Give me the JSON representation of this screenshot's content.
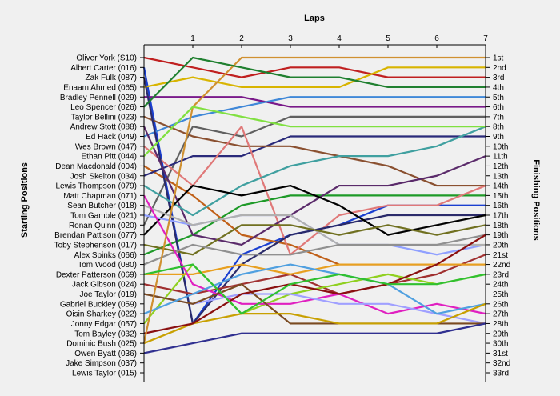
{
  "chart_data": {
    "type": "line",
    "title": "",
    "xlabel": "Laps",
    "ylabel": "Starting Positions",
    "y2label": "Finishing Positions",
    "x": [
      0,
      1,
      2,
      3,
      4,
      5,
      6,
      7
    ],
    "x_tick_labels": [
      "1",
      "2",
      "3",
      "4",
      "5",
      "6",
      "7"
    ],
    "ylim": [
      1,
      33
    ],
    "y_inverted": true,
    "grid": false,
    "start_labels": [
      "Oliver York (S10)",
      "Albert Carter (016)",
      "Zak Fulk (087)",
      "Enaam Ahmed (065)",
      "Bradley Pennell (029)",
      "Leo Spencer (026)",
      "Taylor Bellini (023)",
      "Andrew Stott (088)",
      "Ed Hack (049)",
      "Wes Brown (047)",
      "Ethan Pitt (044)",
      "Dean Macdonald (004)",
      "Josh Skelton (034)",
      "Lewis Thompson (079)",
      "Matt Chapman (071)",
      "Sean Butcher (018)",
      "Tom Gamble (021)",
      "Ronan Quinn (020)",
      "Brendan Pattison (077)",
      "Toby Stephenson (017)",
      "Alex Spinks (066)",
      "Tom Wood (080)",
      "Dexter Patterson (069)",
      "Jack Gibson (024)",
      "Joe Taylor (019)",
      "Gabriel Buckley (059)",
      "Oisin Sharkey (022)",
      "Jonny Edgar (057)",
      "Tom Bayley (032)",
      "Dominic Bush (025)",
      "Owen Byatt (036)",
      "Jake Simpson (037)",
      "Lewis Taylor (015)"
    ],
    "finish_labels": [
      "1st",
      "2nd",
      "3rd",
      "4th",
      "5th",
      "6th",
      "7th",
      "8th",
      "9th",
      "10th",
      "11th",
      "12th",
      "13th",
      "14th",
      "15th",
      "16th",
      "17th",
      "18th",
      "19th",
      "20th",
      "21st",
      "22nd",
      "23rd",
      "24th",
      "25th",
      "26th",
      "27th",
      "28th",
      "29th",
      "30th",
      "31st",
      "32nd",
      "33rd"
    ],
    "series": [
      {
        "color": "#c02020",
        "values": [
          1,
          2,
          3,
          2,
          2,
          3,
          3,
          3
        ]
      },
      {
        "color": "#1a3fd0",
        "values": [
          2,
          28,
          21,
          19,
          18,
          16,
          16,
          16
        ]
      },
      {
        "color": "#d8b400",
        "values": [
          4,
          3,
          4,
          4,
          4,
          2,
          2,
          2
        ]
      },
      {
        "color": "#1e9a28",
        "values": [
          21,
          19,
          16,
          15,
          15,
          15,
          15,
          15
        ]
      },
      {
        "color": "#7a1a8a",
        "values": [
          5,
          5,
          5,
          6,
          6,
          6,
          6,
          6
        ]
      },
      {
        "color": "#4088d8",
        "values": [
          9,
          7,
          6,
          5,
          5,
          5,
          5,
          5
        ]
      },
      {
        "color": "#c06018",
        "values": [
          12,
          15,
          19,
          20,
          22,
          22,
          22,
          22
        ]
      },
      {
        "color": "#606060",
        "values": [
          18,
          8,
          9,
          7,
          7,
          7,
          7,
          7
        ]
      },
      {
        "color": "#2a2a7a",
        "values": [
          13,
          11,
          11,
          9,
          9,
          9,
          9,
          9
        ]
      },
      {
        "color": "#8a5030",
        "values": [
          7,
          9,
          10,
          10,
          11,
          12,
          14,
          14
        ]
      },
      {
        "color": "#e07878",
        "values": [
          10,
          14,
          8,
          21,
          17,
          16,
          16,
          14
        ]
      },
      {
        "color": "#2a2a6a",
        "values": [
          3,
          28,
          22,
          19,
          18,
          17,
          17,
          17
        ]
      },
      {
        "color": "#5a2a6a",
        "values": [
          8,
          19,
          20,
          17,
          14,
          14,
          13,
          11
        ]
      },
      {
        "color": "#40a0a0",
        "values": [
          14,
          17,
          14,
          12,
          11,
          11,
          10,
          8
        ]
      },
      {
        "color": "#000000",
        "values": [
          19,
          14,
          15,
          14,
          16,
          19,
          18,
          17
        ]
      },
      {
        "color": "#90a0ff",
        "values": [
          17,
          18,
          17,
          17,
          20,
          20,
          21,
          20
        ]
      },
      {
        "color": "#b0b0b0",
        "values": [
          16,
          18,
          17,
          17,
          20,
          20,
          20,
          20
        ]
      },
      {
        "color": "#707020",
        "values": [
          20,
          21,
          18,
          18,
          19,
          18,
          19,
          18
        ]
      },
      {
        "color": "#a03030",
        "values": [
          24,
          25,
          24,
          23,
          25,
          24,
          23,
          21
        ]
      },
      {
        "color": "#909090",
        "values": [
          22,
          20,
          21,
          21,
          20,
          20,
          20,
          19
        ]
      },
      {
        "color": "#90d020",
        "values": [
          28,
          22,
          27,
          25,
          24,
          23,
          24,
          23
        ]
      },
      {
        "color": "#e8a020",
        "values": [
          23,
          23,
          22,
          23,
          22,
          22,
          22,
          22
        ]
      },
      {
        "color": "#e020c0",
        "values": [
          15,
          24,
          26,
          26,
          25,
          27,
          26,
          27
        ]
      },
      {
        "color": "#a0a0ff",
        "values": [
          25,
          26,
          25,
          25,
          26,
          26,
          27,
          28
        ]
      },
      {
        "color": "#7a4a20",
        "values": [
          25,
          26,
          24,
          28,
          28,
          28,
          28,
          28
        ]
      },
      {
        "color": "#50a0e0",
        "values": [
          27,
          25,
          23,
          22,
          23,
          24,
          27,
          26
        ]
      },
      {
        "color": "#c8a000",
        "values": [
          30,
          28,
          27,
          27,
          28,
          28,
          28,
          26
        ]
      },
      {
        "color": "#8a1010",
        "values": [
          29,
          28,
          25,
          24,
          25,
          24,
          22,
          19
        ]
      },
      {
        "color": "#d09030",
        "values": [
          30,
          6,
          1,
          1,
          1,
          1,
          1,
          1
        ]
      },
      {
        "color": "#303090",
        "values": [
          31,
          30,
          29,
          29,
          29,
          29,
          29,
          28
        ]
      },
      {
        "color": "#30c030",
        "values": [
          23,
          22,
          27,
          24,
          23,
          24,
          24,
          23
        ]
      },
      {
        "color": "#80e040",
        "values": [
          11,
          6,
          7,
          8,
          8,
          8,
          8,
          8
        ]
      },
      {
        "color": "#208030",
        "values": [
          6,
          1,
          2,
          3,
          3,
          4,
          4,
          4
        ]
      }
    ]
  }
}
